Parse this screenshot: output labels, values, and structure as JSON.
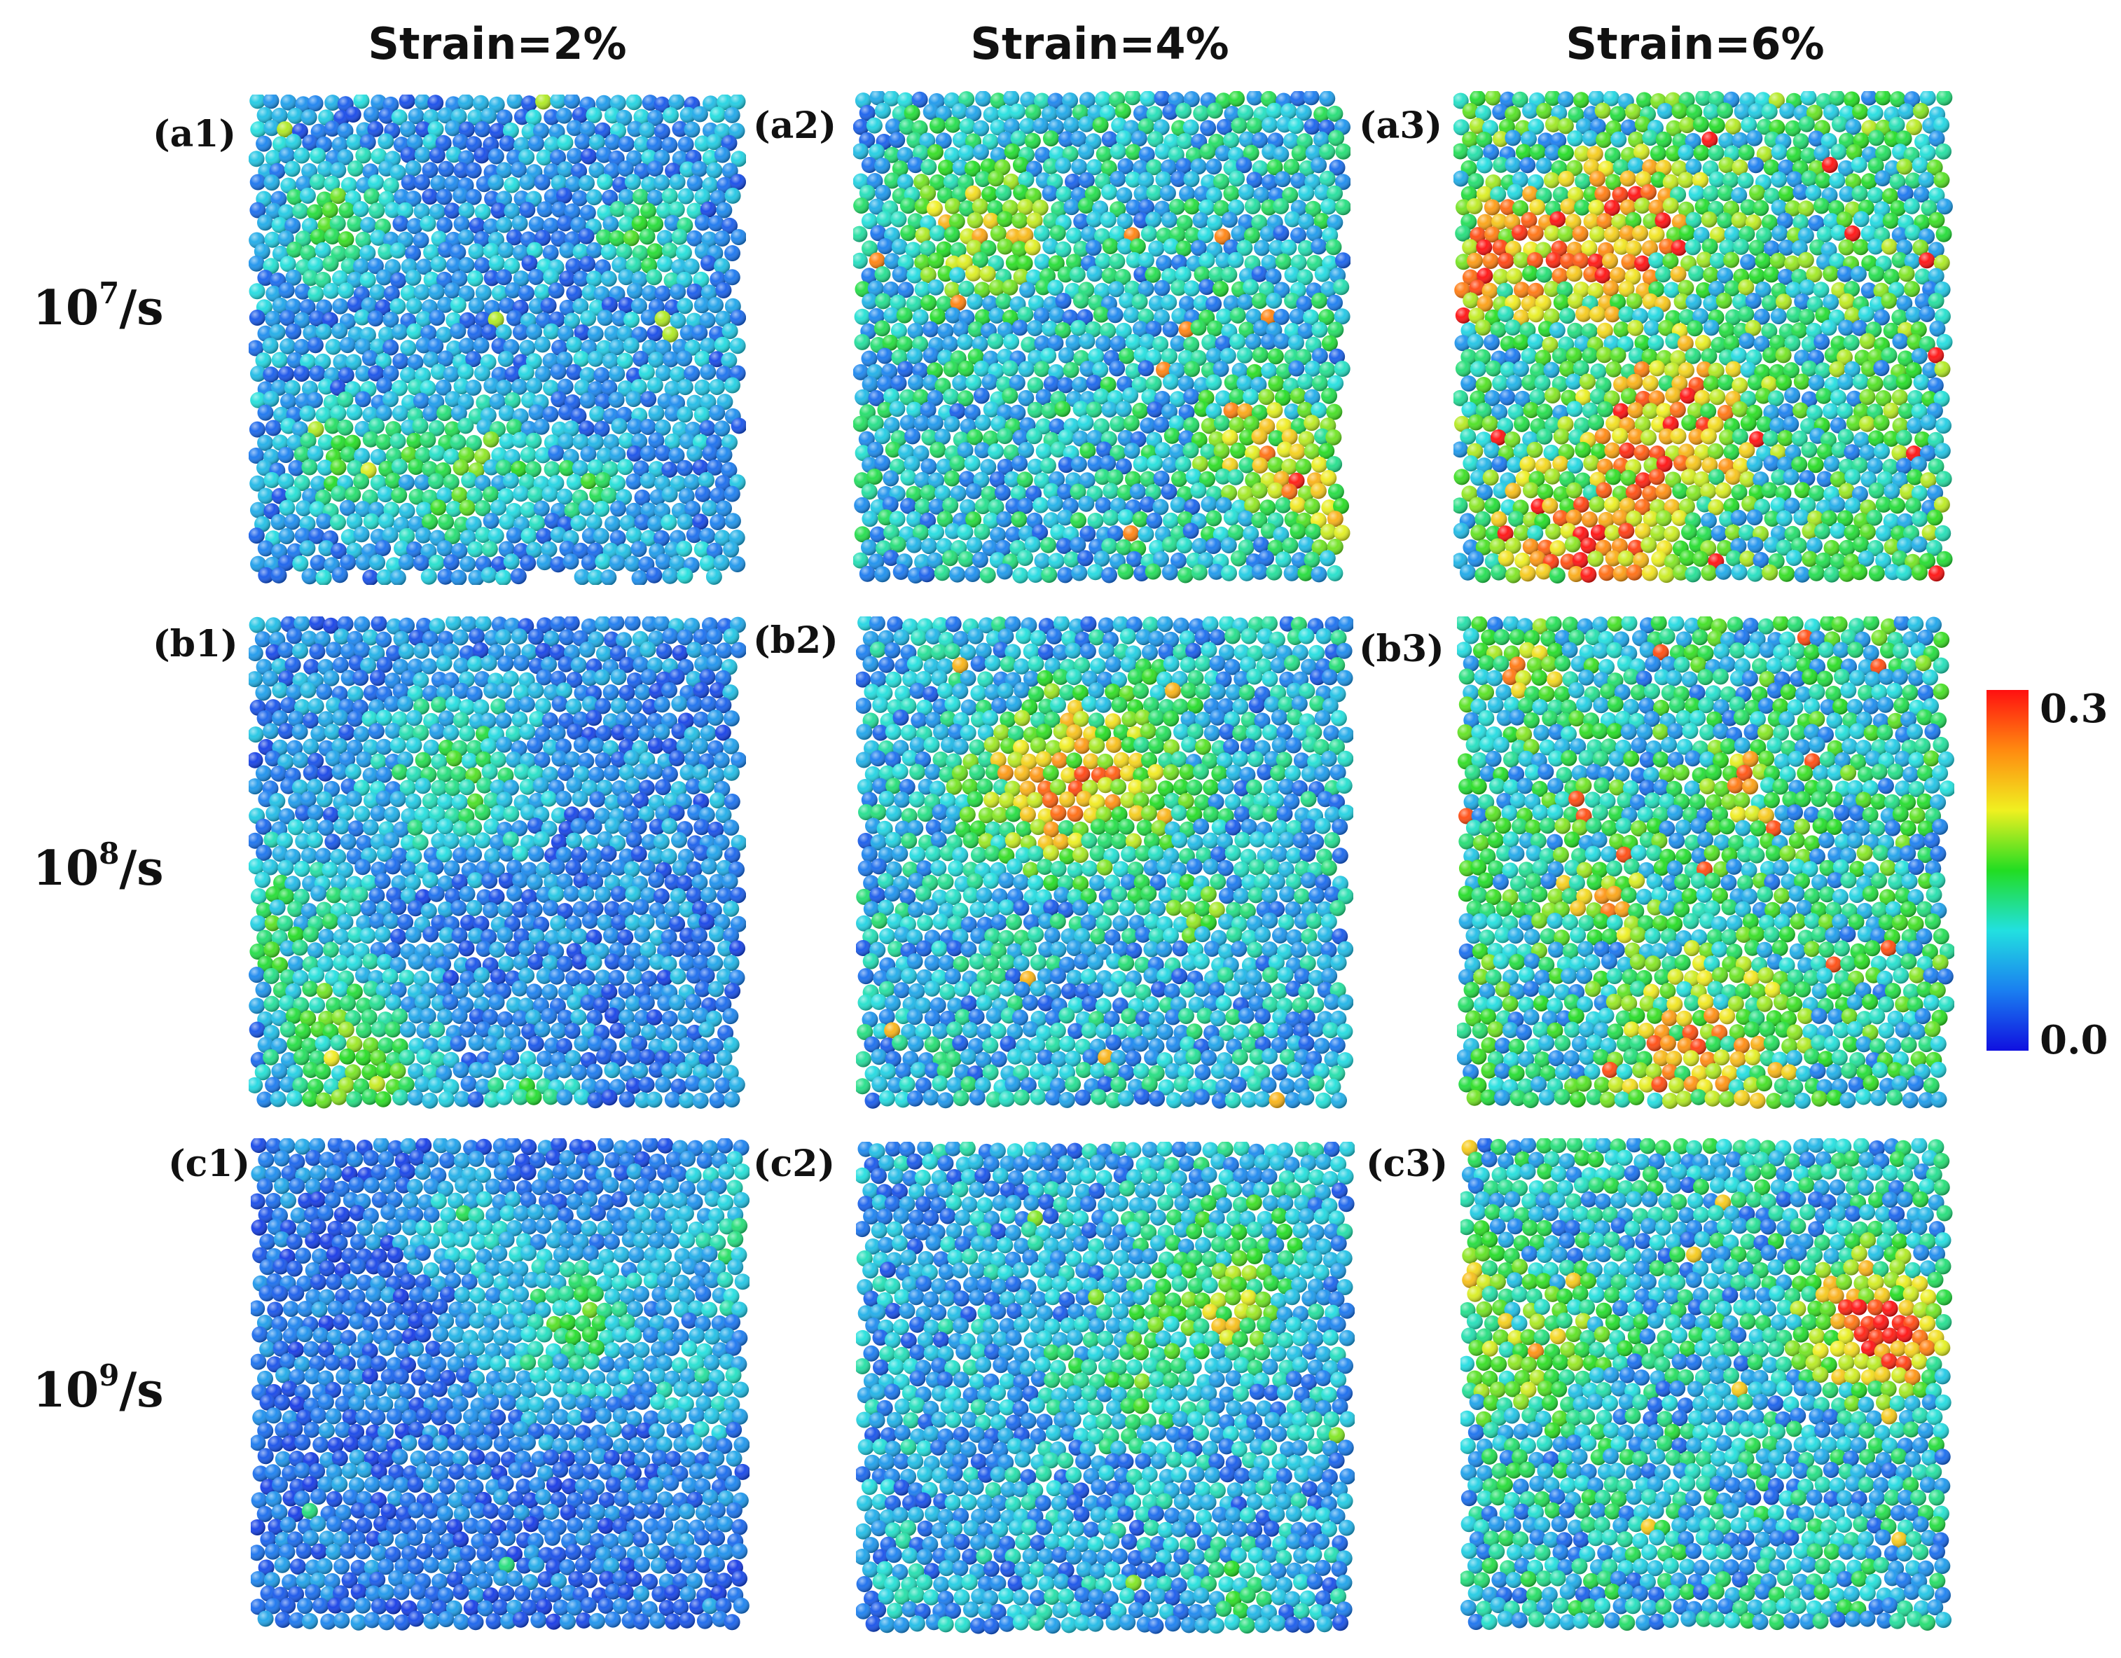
{
  "columns": [
    "Strain=2%",
    "Strain=4%",
    "Strain=6%"
  ],
  "rows": [
    {
      "base": "10",
      "exp": "7",
      "unit": "/s"
    },
    {
      "base": "10",
      "exp": "8",
      "unit": "/s"
    },
    {
      "base": "10",
      "exp": "9",
      "unit": "/s"
    }
  ],
  "panel_labels": [
    [
      "(a1)",
      "(a2)",
      "(a3)"
    ],
    [
      "(b1)",
      "(b2)",
      "(b3)"
    ],
    [
      "(c1)",
      "(c2)",
      "(c3)"
    ]
  ],
  "colorbar": {
    "max_label": "0.3",
    "min_label": "0.0",
    "stops": [
      "#1010e0",
      "#1a7ff0",
      "#22e0e0",
      "#22dd22",
      "#f0f020",
      "#ff8a10",
      "#ff1010"
    ]
  },
  "chart_data": {
    "type": "heatmap",
    "description_levels": [
      {
        "panel": "(a1)",
        "mean_level": 0.07,
        "hotspot_level": 0.16
      },
      {
        "panel": "(a2)",
        "mean_level": 0.1,
        "hotspot_level": 0.22
      },
      {
        "panel": "(a3)",
        "mean_level": 0.13,
        "hotspot_level": 0.28
      },
      {
        "panel": "(b1)",
        "mean_level": 0.06,
        "hotspot_level": 0.14
      },
      {
        "panel": "(b2)",
        "mean_level": 0.09,
        "hotspot_level": 0.2
      },
      {
        "panel": "(b3)",
        "mean_level": 0.12,
        "hotspot_level": 0.24
      },
      {
        "panel": "(c1)",
        "mean_level": 0.05,
        "hotspot_level": 0.11
      },
      {
        "panel": "(c2)",
        "mean_level": 0.08,
        "hotspot_level": 0.15
      },
      {
        "panel": "(c3)",
        "mean_level": 0.1,
        "hotspot_level": 0.19
      }
    ],
    "value_range": [
      0.0,
      0.3
    ]
  }
}
